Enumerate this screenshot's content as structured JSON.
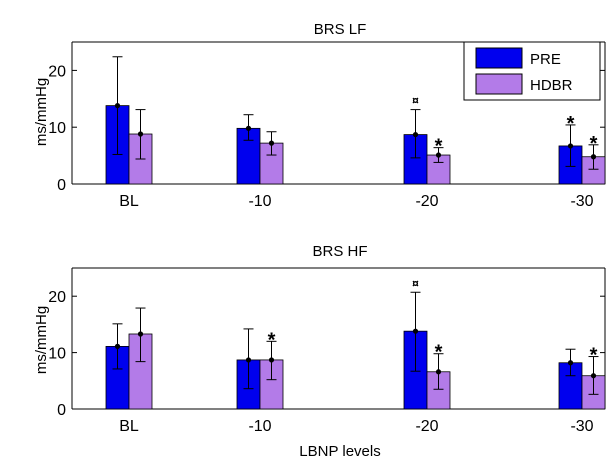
{
  "xlabel": "LBNP levels",
  "colors": {
    "pre": "#0000ee",
    "hdbr": "#b37be8"
  },
  "legend": {
    "placement": "top-right",
    "entries": [
      "PRE",
      "HDBR"
    ]
  },
  "chart_data": [
    {
      "type": "bar",
      "title": "BRS LF",
      "ylabel": "ms/mmHg",
      "ylim": [
        0,
        25
      ],
      "yticks": [
        "0",
        "10",
        "20"
      ],
      "categories": [
        "BL",
        "-10",
        "-20",
        "-30"
      ],
      "series": [
        {
          "name": "PRE",
          "values": [
            13.8,
            9.8,
            8.7,
            6.7
          ],
          "err_low": [
            5.2,
            7.7,
            4.6,
            3.1
          ],
          "err_high": [
            22.4,
            12.2,
            13.1,
            10.4
          ]
        },
        {
          "name": "HDBR",
          "values": [
            8.8,
            7.2,
            5.1,
            4.8
          ],
          "err_low": [
            4.4,
            5.1,
            3.8,
            2.6
          ],
          "err_high": [
            13.1,
            9.2,
            6.4,
            6.9
          ]
        }
      ],
      "annotations": [
        {
          "category": "-20",
          "series": "PRE",
          "symbol": "¤"
        },
        {
          "category": "-20",
          "series": "HDBR",
          "symbol": "*"
        },
        {
          "category": "-30",
          "series": "PRE",
          "symbol": "*"
        },
        {
          "category": "-30",
          "series": "HDBR",
          "symbol": "*"
        }
      ]
    },
    {
      "type": "bar",
      "title": "BRS  HF",
      "ylabel": "ms/mmHg",
      "ylim": [
        0,
        25
      ],
      "yticks": [
        "0",
        "10",
        "20"
      ],
      "categories": [
        "BL",
        "-10",
        "-20",
        "-30"
      ],
      "series": [
        {
          "name": "PRE",
          "values": [
            11.1,
            8.7,
            13.8,
            8.2
          ],
          "err_low": [
            7.1,
            3.6,
            6.7,
            5.9
          ],
          "err_high": [
            15.1,
            14.2,
            20.7,
            10.6
          ]
        },
        {
          "name": "HDBR",
          "values": [
            13.3,
            8.7,
            6.6,
            5.9
          ],
          "err_low": [
            8.4,
            5.2,
            3.5,
            2.6
          ],
          "err_high": [
            17.9,
            12.0,
            9.8,
            9.3
          ]
        }
      ],
      "annotations": [
        {
          "category": "-10",
          "series": "HDBR",
          "symbol": "*"
        },
        {
          "category": "-20",
          "series": "PRE",
          "symbol": "¤"
        },
        {
          "category": "-20",
          "series": "HDBR",
          "symbol": "*"
        },
        {
          "category": "-30",
          "series": "HDBR",
          "symbol": "*"
        }
      ]
    }
  ]
}
